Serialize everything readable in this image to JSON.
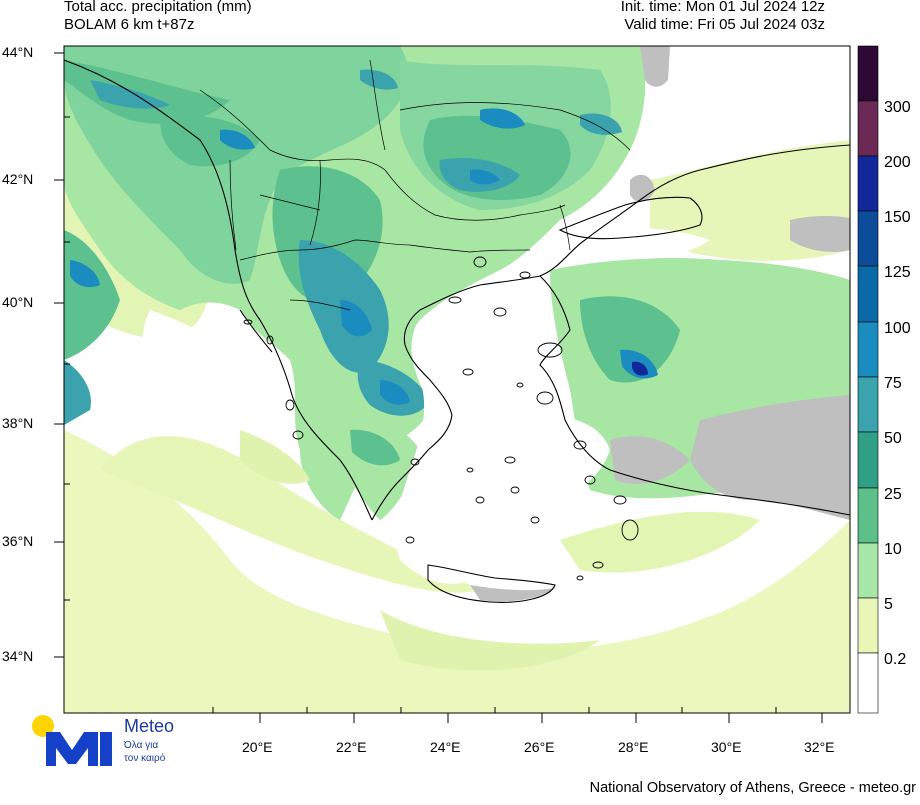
{
  "header": {
    "title_line1": "Total acc. precipitation (mm)",
    "title_line2": "BOLAM 6 km t+87z",
    "init_time": "Init. time: Mon 01 Jul 2024 12z",
    "valid_time": "Valid time: Fri 05 Jul 2024 03z"
  },
  "axes": {
    "lat_labels": [
      "44°N",
      "42°N",
      "40°N",
      "38°N",
      "36°N",
      "34°N"
    ],
    "lon_labels": [
      "20°E",
      "22°E",
      "24°E",
      "26°E",
      "28°E",
      "30°E",
      "32°E"
    ]
  },
  "colorbar": {
    "labels": [
      "300",
      "200",
      "150",
      "125",
      "100",
      "75",
      "50",
      "25",
      "10",
      "5",
      "0.2"
    ],
    "colors": [
      "#2d0a35",
      "#6b2a55",
      "#12289a",
      "#0b4d98",
      "#0a6aa8",
      "#1b8cbf",
      "#3aa3ad",
      "#2fa085",
      "#5cc08a",
      "#a6e6a6",
      "#e8f7b8",
      "#ffffff"
    ]
  },
  "logo": {
    "brand": "Meteo",
    "tagline1": "Όλα για",
    "tagline2": "τον καιρό",
    "colors": {
      "sun": "#ffd400",
      "mark": "#1540c8"
    }
  },
  "footer": "National Observatory of Athens, Greece - meteo.gr"
}
